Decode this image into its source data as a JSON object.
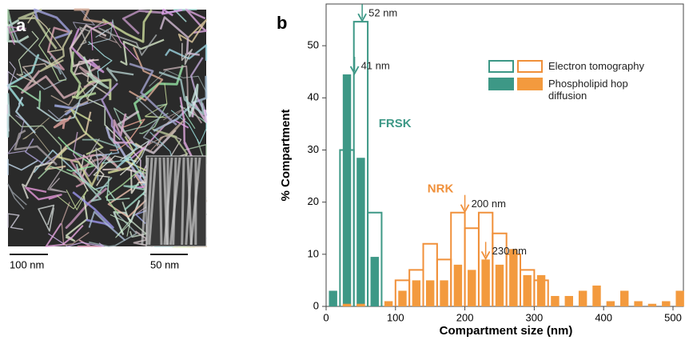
{
  "panel_a": {
    "label": "a",
    "scale_bars": [
      "100 nm",
      "50 nm"
    ]
  },
  "chart_data": {
    "type": "histogram",
    "panel_label": "b",
    "x_label": "Compartment size (nm)",
    "y_label": "% Compartment",
    "xlim": [
      0,
      515
    ],
    "ylim": [
      0,
      58
    ],
    "xticks": [
      0,
      100,
      200,
      300,
      400,
      500
    ],
    "yticks": [
      0,
      10,
      20,
      30,
      40,
      50
    ],
    "legend": [
      {
        "label": "Electron tomography",
        "style": "outline"
      },
      {
        "label": "Phospholipid hop diffusion",
        "style": "filled"
      }
    ],
    "series": [
      {
        "group": "FRSK",
        "style": "filled",
        "color": "#3d9886",
        "x": [
          10,
          30,
          50,
          70
        ],
        "values": [
          3,
          44.5,
          28.5,
          9.5
        ]
      },
      {
        "style": "outline",
        "color": "#3d9886",
        "bins": [
          20,
          40,
          60,
          80
        ],
        "values": [
          30,
          54.6,
          18
        ]
      },
      {
        "group": "NRK",
        "style": "outline",
        "color": "#f0903a",
        "bins": [
          100,
          120,
          140,
          160,
          180,
          200,
          220,
          240,
          260,
          280,
          300,
          320
        ],
        "values": [
          5,
          7,
          12,
          9,
          18,
          15,
          18,
          14,
          10,
          7,
          5
        ]
      },
      {
        "style": "filled",
        "color": "#f39a3e",
        "x": [
          30,
          50,
          90,
          110,
          130,
          150,
          170,
          190,
          210,
          230,
          250,
          270,
          290,
          310,
          330,
          350,
          370,
          390,
          410,
          430,
          450,
          470,
          490,
          510
        ],
        "values": [
          0.5,
          0.5,
          1,
          3,
          5,
          5,
          5,
          8,
          7,
          9,
          8,
          11,
          6,
          6,
          2,
          2,
          3,
          4,
          1,
          3,
          1,
          0.5,
          1,
          3
        ]
      }
    ],
    "annotations": [
      {
        "text": "52 nm",
        "x": 52,
        "y": 54.6,
        "color": "#3d9886"
      },
      {
        "text": "41 nm",
        "x": 41,
        "y": 44.5,
        "color": "#3d9886"
      },
      {
        "text": "200 nm",
        "x": 200,
        "y": 18,
        "color": "#f0903a"
      },
      {
        "text": "230 nm",
        "x": 230,
        "y": 9,
        "color": "#f0903a"
      }
    ]
  }
}
